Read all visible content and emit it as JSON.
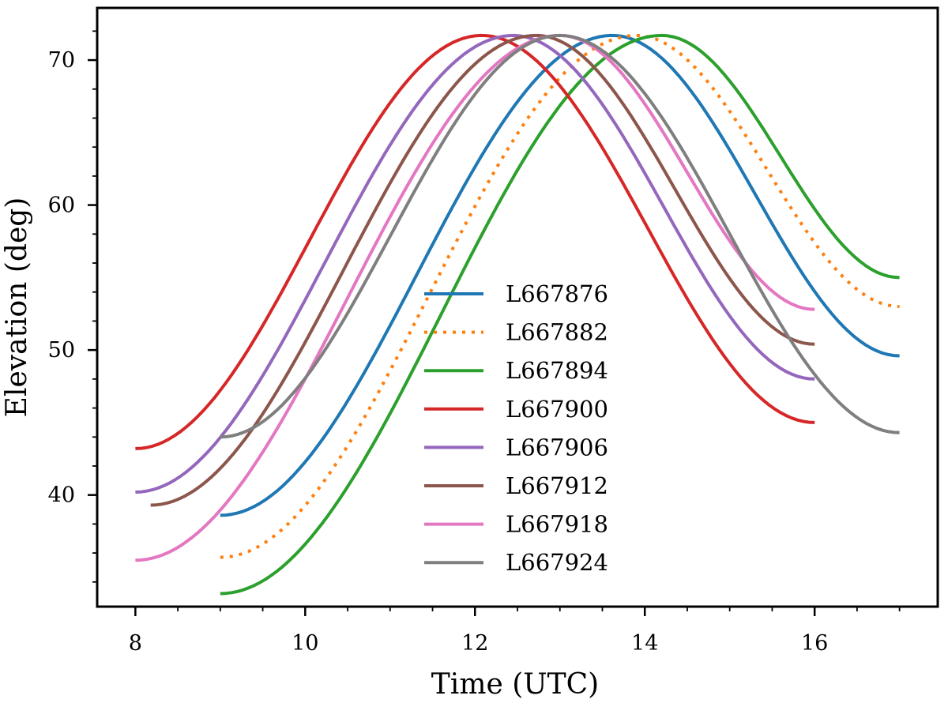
{
  "chart_data": {
    "type": "line",
    "title": "",
    "xlabel": "Time (UTC)",
    "ylabel": "Elevation (deg)",
    "xlim": [
      7.55,
      17.45
    ],
    "ylim": [
      32.3,
      73.6
    ],
    "x_ticks": [
      8,
      10,
      12,
      14,
      16
    ],
    "x_tick_labels": [
      "8",
      "10",
      "12",
      "14",
      "16"
    ],
    "y_ticks": [
      40,
      50,
      60,
      70
    ],
    "y_tick_labels": [
      "40",
      "50",
      "60",
      "70"
    ],
    "grid": false,
    "legend_position": "center",
    "peak_elevation": 71.7,
    "series": [
      {
        "name": "L667876",
        "color": "#1f77b4",
        "dash": "solid",
        "x_start": 9.0,
        "x_end": 17.0,
        "peak_time": 13.62,
        "start_value": 38.6,
        "end_value": 49.6
      },
      {
        "name": "L667882",
        "color": "#ff7f0e",
        "dash": "dotted",
        "x_start": 9.0,
        "x_end": 17.0,
        "peak_time": 13.9,
        "start_value": 35.7,
        "end_value": 53.0
      },
      {
        "name": "L667894",
        "color": "#2ca02c",
        "dash": "solid",
        "x_start": 9.0,
        "x_end": 17.0,
        "peak_time": 14.2,
        "start_value": 33.2,
        "end_value": 55.0
      },
      {
        "name": "L667900",
        "color": "#d62728",
        "dash": "solid",
        "x_start": 8.0,
        "x_end": 16.0,
        "peak_time": 12.08,
        "start_value": 43.2,
        "end_value": 45.0
      },
      {
        "name": "L667906",
        "color": "#9467bd",
        "dash": "solid",
        "x_start": 8.0,
        "x_end": 16.0,
        "peak_time": 12.45,
        "start_value": 40.2,
        "end_value": 48.0
      },
      {
        "name": "L667912",
        "color": "#8c564b",
        "dash": "solid",
        "x_start": 8.18,
        "x_end": 16.0,
        "peak_time": 12.72,
        "start_value": 39.3,
        "end_value": 50.4
      },
      {
        "name": "L667918",
        "color": "#e377c2",
        "dash": "solid",
        "x_start": 8.0,
        "x_end": 16.0,
        "peak_time": 13.0,
        "start_value": 35.5,
        "end_value": 52.8
      },
      {
        "name": "L667924",
        "color": "#7f7f7f",
        "dash": "solid",
        "x_start": 9.0,
        "x_end": 17.0,
        "peak_time": 13.0,
        "start_value": 44.0,
        "end_value": 44.3
      }
    ]
  }
}
